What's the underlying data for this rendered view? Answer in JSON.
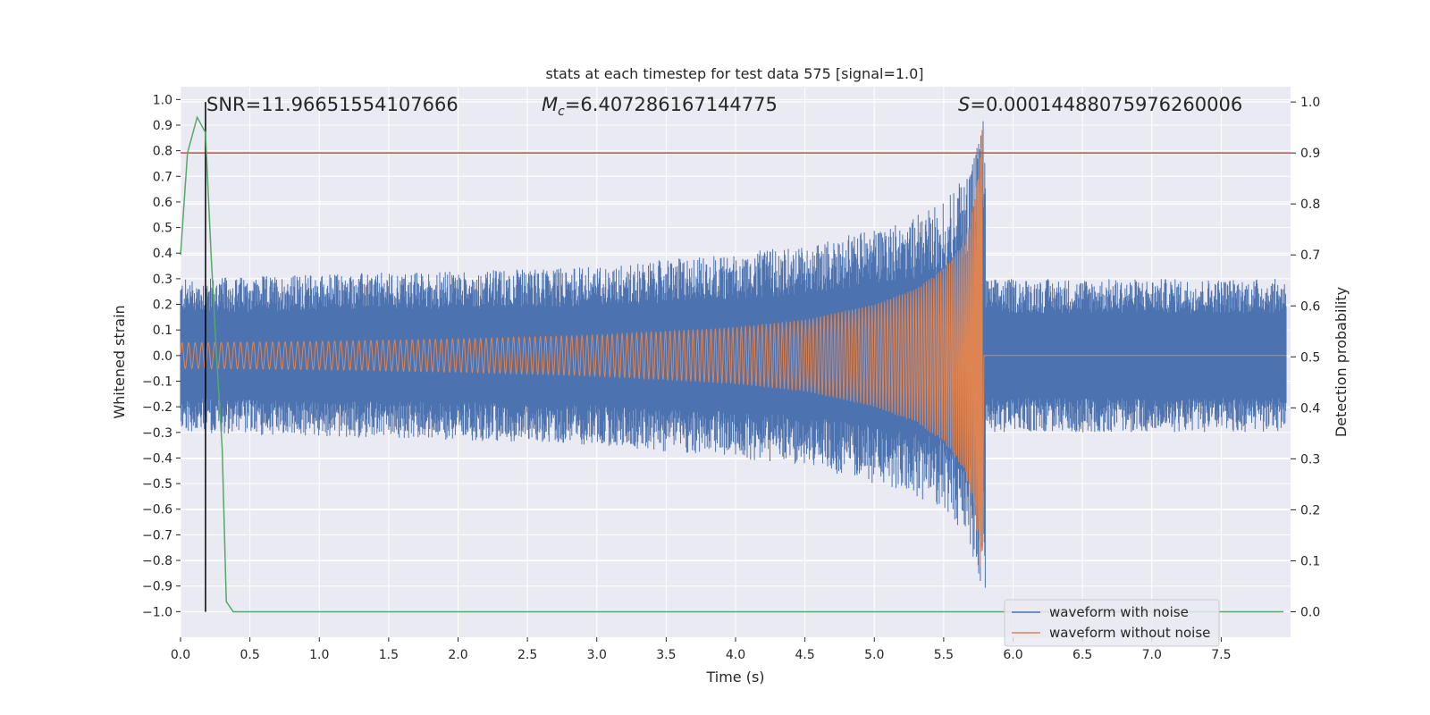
{
  "chart_data": {
    "type": "line",
    "title": "stats at each timestep for test data 575 [signal=1.0]",
    "xlabel": "Time (s)",
    "ylabel": "Whitened strain",
    "y2label": "Detection probability",
    "xlim": [
      0.0,
      8.0
    ],
    "ylim": [
      -1.1,
      1.05
    ],
    "y2lim": [
      -0.05,
      1.03
    ],
    "xticks": [
      "0.0",
      "0.5",
      "1.0",
      "1.5",
      "2.0",
      "2.5",
      "3.0",
      "3.5",
      "4.0",
      "4.5",
      "5.0",
      "5.5",
      "6.0",
      "6.5",
      "7.0",
      "7.5"
    ],
    "yticks": [
      "1.0",
      "0.9",
      "0.8",
      "0.7",
      "0.6",
      "0.5",
      "0.4",
      "0.3",
      "0.2",
      "0.1",
      "0.0",
      "−0.1",
      "−0.2",
      "−0.3",
      "−0.4",
      "−0.5",
      "−0.6",
      "−0.7",
      "−0.8",
      "−0.9",
      "−1.0"
    ],
    "y2ticks": [
      "1.0",
      "0.9",
      "0.8",
      "0.7",
      "0.6",
      "0.5",
      "0.4",
      "0.3",
      "0.2",
      "0.1",
      "0.0"
    ],
    "annotations": {
      "snr": "SNR=11.96651554107666",
      "mc_symbol": "M",
      "mc_sub": "c",
      "mc_value": "=6.407286167144775",
      "s_symbol": "S",
      "s_value": "=0.00014488075976260006"
    },
    "legend": {
      "location": "lower-right",
      "entries": [
        "waveform with noise",
        "waveform without noise"
      ]
    },
    "colors": {
      "noise": "#4c72b0",
      "clean": "#dd8452",
      "probability": "#55a868",
      "threshold": "#c44e52",
      "marker": "#000000",
      "axes_bg": "#eaeaf2",
      "grid": "#ffffff"
    },
    "merger_time": 5.8,
    "threshold_probability": 0.9,
    "marker_time": 0.18,
    "series": [
      {
        "name": "waveform with noise",
        "envelope": {
          "t": [
            0.0,
            1.0,
            2.0,
            3.0,
            4.0,
            4.5,
            5.0,
            5.3,
            5.5,
            5.65,
            5.75,
            5.8
          ],
          "amp": [
            0.3,
            0.32,
            0.33,
            0.35,
            0.4,
            0.43,
            0.5,
            0.55,
            0.6,
            0.7,
            0.85,
            1.0
          ]
        },
        "post_merger_amp": 0.3
      },
      {
        "name": "waveform without noise",
        "envelope": {
          "t": [
            0.0,
            1.0,
            2.0,
            3.0,
            4.0,
            4.5,
            5.0,
            5.3,
            5.5,
            5.65,
            5.72,
            5.78
          ],
          "amp": [
            0.05,
            0.055,
            0.065,
            0.08,
            0.11,
            0.14,
            0.2,
            0.26,
            0.34,
            0.45,
            0.6,
            0.9
          ]
        },
        "post_merger_value": 0.0
      },
      {
        "name": "detection probability",
        "axis": "right",
        "x": [
          0.0,
          0.05,
          0.12,
          0.18,
          0.22,
          0.26,
          0.3,
          0.33,
          0.38,
          7.95
        ],
        "y": [
          0.7,
          0.9,
          0.97,
          0.94,
          0.7,
          0.5,
          0.32,
          0.02,
          0.0,
          0.0
        ]
      }
    ]
  }
}
